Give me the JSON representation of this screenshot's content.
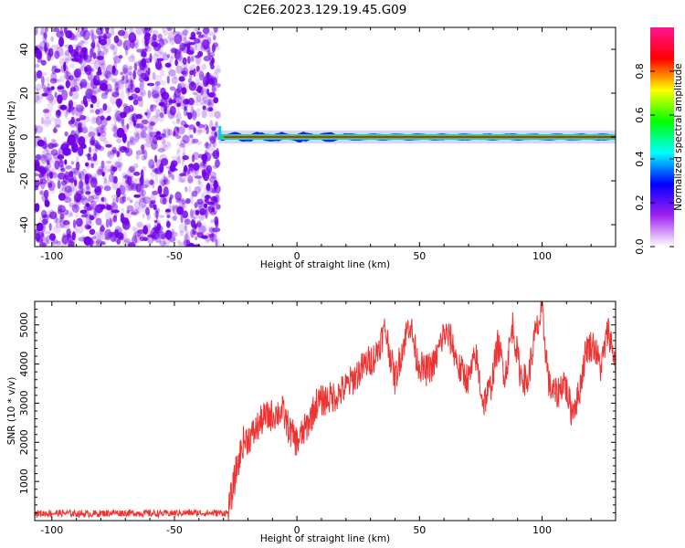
{
  "figure": {
    "title": "C2E6.2023.129.19.45.G09"
  },
  "chart_data": [
    {
      "type": "heatmap",
      "xlabel": "Height of straight line (km)",
      "ylabel": "Frequency (Hz)",
      "xlim": [
        -107,
        130
      ],
      "ylim": [
        -50,
        50
      ],
      "xticks": [
        -100,
        -50,
        0,
        50,
        100
      ],
      "yticks": [
        -40,
        -20,
        0,
        20,
        40
      ],
      "noise_region_x": [
        -107,
        -32
      ],
      "signal": {
        "x_start": -32,
        "x_end": 130,
        "frequency_hz": 0,
        "peak_amplitude": 0.95
      },
      "colorbar": {
        "label": "Normalized spectral amplitude",
        "range": [
          0,
          1
        ],
        "ticks": [
          "0.0",
          "0.2",
          "0.4",
          "0.6",
          "0.8"
        ],
        "colors": [
          "#ffffff",
          "#a020f0",
          "#0000ff",
          "#00ffff",
          "#00ff00",
          "#ffff00",
          "#ff0000",
          "#ff1493"
        ]
      },
      "colors": {
        "noise": "#7000e8"
      }
    },
    {
      "type": "line",
      "xlabel": "Height of straight line (km)",
      "ylabel": "SNR (10 * v/v)",
      "xlim": [
        -107,
        130
      ],
      "ylim": [
        0,
        5600
      ],
      "xticks": [
        -100,
        -50,
        0,
        50,
        100
      ],
      "yticks": [
        1000,
        2000,
        3000,
        4000,
        5000
      ],
      "series": [
        {
          "color": "#ee3333",
          "x": [
            -107,
            -95,
            -85,
            -75,
            -65,
            -55,
            -45,
            -35,
            -28,
            -25,
            -22,
            -18,
            -14,
            -10,
            -6,
            -3,
            0,
            4,
            8,
            12,
            16,
            20,
            24,
            28,
            32,
            36,
            40,
            43,
            46,
            49,
            52,
            56,
            60,
            63,
            66,
            70,
            73,
            76,
            79,
            82,
            85,
            88,
            91,
            94,
            97,
            100,
            103,
            106,
            109,
            112,
            115,
            118,
            121,
            124,
            127,
            130
          ],
          "y": [
            180,
            190,
            170,
            200,
            190,
            180,
            200,
            190,
            200,
            1200,
            2000,
            2200,
            2600,
            2700,
            2800,
            2300,
            2000,
            2400,
            3000,
            3100,
            3200,
            3400,
            3700,
            4000,
            4200,
            4900,
            3600,
            4400,
            5100,
            4100,
            3800,
            4000,
            4800,
            4600,
            3900,
            3600,
            4200,
            3000,
            3400,
            4500,
            3700,
            5000,
            3800,
            3500,
            4700,
            5300,
            3400,
            3200,
            3600,
            2800,
            3200,
            4400,
            4500,
            3900,
            4900,
            4000
          ]
        }
      ]
    }
  ]
}
